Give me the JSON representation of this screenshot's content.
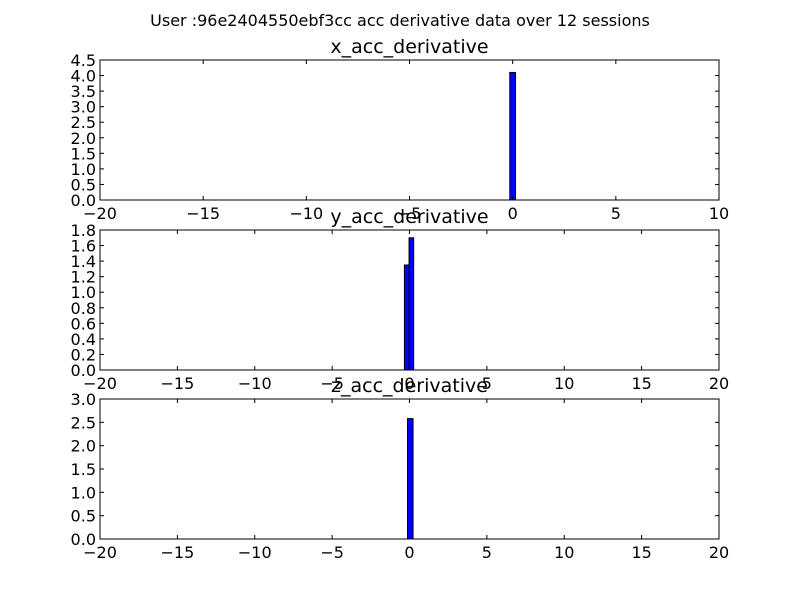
{
  "figure": {
    "title": "User :96e2404550ebf3cc acc derivative data over 12 sessions"
  },
  "colors": {
    "bar_fill": "#0000ff",
    "bar_edge": "#000000",
    "axes": "#000000",
    "background": "#ffffff"
  },
  "chart_data": [
    {
      "type": "bar",
      "title": "x_acc_derivative",
      "xlabel": "",
      "ylabel": "",
      "xlim": [
        -20,
        10
      ],
      "ylim": [
        0,
        4.5
      ],
      "xticks": [
        "−20",
        "−15",
        "−10",
        "−5",
        "0",
        "5",
        "10"
      ],
      "yticks": [
        "0.0",
        "0.5",
        "1.0",
        "1.5",
        "2.0",
        "2.5",
        "3.0",
        "3.5",
        "4.0",
        "4.5"
      ],
      "bins": [
        {
          "x0": -0.14,
          "x1": 0.14,
          "value": 4.1
        }
      ]
    },
    {
      "type": "bar",
      "title": "y_acc_derivative",
      "xlabel": "",
      "ylabel": "",
      "xlim": [
        -20,
        20
      ],
      "ylim": [
        0,
        1.8
      ],
      "xticks": [
        "−20",
        "−15",
        "−10",
        "−5",
        "0",
        "5",
        "10",
        "15",
        "20"
      ],
      "yticks": [
        "0.0",
        "0.2",
        "0.4",
        "0.6",
        "0.8",
        "1.0",
        "1.2",
        "1.4",
        "1.6",
        "1.8"
      ],
      "bins": [
        {
          "x0": -0.33,
          "x1": -0.03,
          "value": 1.35
        },
        {
          "x0": -0.03,
          "x1": 0.27,
          "value": 1.7
        }
      ]
    },
    {
      "type": "bar",
      "title": "z_acc_derivative",
      "xlabel": "",
      "ylabel": "",
      "xlim": [
        -20,
        20
      ],
      "ylim": [
        0,
        3.0
      ],
      "xticks": [
        "−20",
        "−15",
        "−10",
        "−5",
        "0",
        "5",
        "10",
        "15",
        "20"
      ],
      "yticks": [
        "0.0",
        "0.5",
        "1.0",
        "1.5",
        "2.0",
        "2.5",
        "3.0"
      ],
      "bins": [
        {
          "x0": -0.13,
          "x1": 0.23,
          "value": 2.58
        }
      ]
    }
  ]
}
